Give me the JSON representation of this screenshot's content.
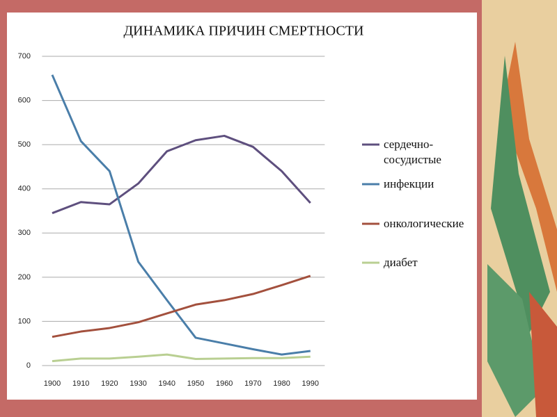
{
  "chart_data": {
    "type": "line",
    "title": "ДИНАМИКА ПРИЧИН СМЕРТНОСТИ",
    "categories": [
      "1900",
      "1910",
      "1920",
      "1930",
      "1940",
      "1950",
      "1960",
      "1970",
      "1980",
      "1990"
    ],
    "series": [
      {
        "name": "сердечно-сосудистые",
        "color": "#5e4f7e",
        "values": [
          345,
          370,
          365,
          412,
          485,
          510,
          520,
          495,
          440,
          368
        ]
      },
      {
        "name": "инфекции",
        "color": "#4a7ea9",
        "values": [
          658,
          508,
          440,
          235,
          148,
          63,
          50,
          37,
          25,
          33
        ]
      },
      {
        "name": "онкологические",
        "color": "#a3503d",
        "values": [
          65,
          77,
          85,
          98,
          118,
          138,
          148,
          162,
          182,
          203
        ]
      },
      {
        "name": "диабет",
        "color": "#b9cf92",
        "values": [
          10,
          16,
          16,
          20,
          25,
          15,
          16,
          17,
          17,
          20
        ]
      }
    ],
    "ylim": [
      0,
      700
    ],
    "yticks": [
      0,
      100,
      200,
      300,
      400,
      500,
      600,
      700
    ],
    "grid": true,
    "legend": "right"
  }
}
